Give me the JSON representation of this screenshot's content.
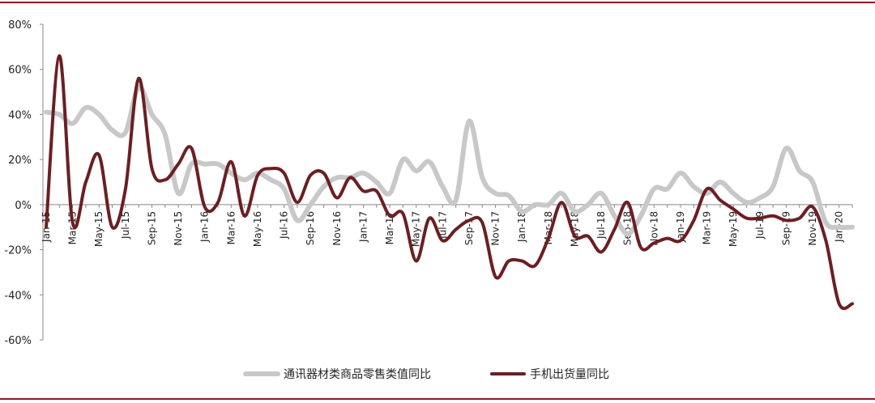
{
  "chart_data": {
    "type": "line",
    "title": "",
    "xlabel": "",
    "ylabel": "",
    "ylim": [
      -60,
      80
    ],
    "yticks": [
      "80%",
      "60%",
      "40%",
      "20%",
      "0%",
      "-20%",
      "-40%",
      "-60%"
    ],
    "ytick_values": [
      80,
      60,
      40,
      20,
      0,
      -20,
      -40,
      -60
    ],
    "x_tick_labels": [
      "Jan-15",
      "Mar-15",
      "May-15",
      "Jul-15",
      "Sep-15",
      "Nov-15",
      "Jan-16",
      "Mar-16",
      "May-16",
      "Jul-16",
      "Sep-16",
      "Nov-16",
      "Jan-17",
      "Mar-17",
      "May-17",
      "Jul-17",
      "Sep-17",
      "Nov-17",
      "Jan-18",
      "Mar-18",
      "May-18",
      "Jul-18",
      "Sep-18",
      "Nov-18",
      "Jan-19",
      "Mar-19",
      "May-19",
      "Jul-19",
      "Sep-19",
      "Nov-19",
      "Jan-20"
    ],
    "x": [
      "2015-01",
      "2015-02",
      "2015-03",
      "2015-04",
      "2015-05",
      "2015-06",
      "2015-07",
      "2015-08",
      "2015-09",
      "2015-10",
      "2015-11",
      "2015-12",
      "2016-01",
      "2016-02",
      "2016-03",
      "2016-04",
      "2016-05",
      "2016-06",
      "2016-07",
      "2016-08",
      "2016-09",
      "2016-10",
      "2016-11",
      "2016-12",
      "2017-01",
      "2017-02",
      "2017-03",
      "2017-04",
      "2017-05",
      "2017-06",
      "2017-07",
      "2017-08",
      "2017-09",
      "2017-10",
      "2017-11",
      "2017-12",
      "2018-01",
      "2018-02",
      "2018-03",
      "2018-04",
      "2018-05",
      "2018-06",
      "2018-07",
      "2018-08",
      "2018-09",
      "2018-10",
      "2018-11",
      "2018-12",
      "2019-01",
      "2019-02",
      "2019-03",
      "2019-04",
      "2019-05",
      "2019-06",
      "2019-07",
      "2019-08",
      "2019-09",
      "2019-10",
      "2019-11",
      "2019-12",
      "2020-01",
      "2020-02"
    ],
    "series": [
      {
        "name": "通讯器材类商品零售类值同比",
        "color": "#c8c8c8",
        "values": [
          41,
          40,
          36,
          43,
          40,
          33,
          32,
          52,
          40,
          31,
          5,
          18,
          18,
          18,
          14,
          11,
          14,
          11,
          7,
          -7,
          0,
          8,
          12,
          12,
          14,
          10,
          5,
          20,
          15,
          19,
          8,
          2,
          37,
          12,
          5,
          4,
          -3,
          0,
          0,
          5,
          -3,
          0,
          5,
          -5,
          -13,
          -5,
          7,
          7,
          14,
          8,
          5,
          10,
          5,
          1,
          3,
          8,
          25,
          15,
          10,
          -8,
          -10,
          -10
        ]
      },
      {
        "name": "手机出货量同比",
        "color": "#6b1f23",
        "values": [
          -10,
          66,
          -8,
          10,
          22,
          -10,
          7,
          56,
          16,
          11,
          18,
          25,
          -1,
          1,
          19,
          -5,
          13,
          16,
          14,
          1,
          13,
          14,
          3,
          12,
          6,
          6,
          -5,
          -4,
          -25,
          -6,
          -16,
          -11,
          -7,
          -8,
          -32,
          -25,
          -25,
          -27,
          -15,
          1,
          -14,
          -14,
          -21,
          -11,
          1,
          -19,
          -17,
          -15,
          -16,
          -7,
          7,
          2,
          -2,
          -6,
          -6,
          -5,
          -7,
          -6,
          -1,
          -16,
          -44,
          -44
        ]
      }
    ],
    "legend": "bottom-center",
    "grid": false
  }
}
